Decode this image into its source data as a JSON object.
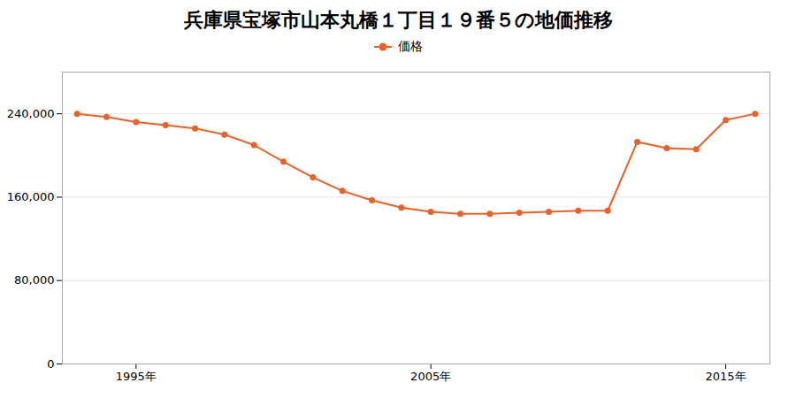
{
  "chart_data": {
    "type": "line",
    "title": "兵庫県宝塚市山本丸橋１丁目１９番５の地価推移",
    "x": [
      1993,
      1994,
      1995,
      1996,
      1997,
      1998,
      1999,
      2000,
      2001,
      2002,
      2003,
      2004,
      2005,
      2006,
      2007,
      2008,
      2009,
      2010,
      2011,
      2012,
      2013,
      2014,
      2015,
      2016
    ],
    "series": [
      {
        "name": "価格",
        "color": "#e8622a",
        "marker": "circle",
        "line_style": "solid",
        "values": [
          240000,
          237000,
          232000,
          229000,
          226000,
          220000,
          210000,
          194000,
          179000,
          166000,
          157000,
          150000,
          146000,
          144000,
          144000,
          145000,
          146000,
          147000,
          147000,
          213000,
          207000,
          206000,
          234000,
          240000
        ]
      }
    ],
    "xlim": [
      1992.5,
      2016.5
    ],
    "xticks": [
      {
        "value": 1995,
        "label": "1995年"
      },
      {
        "value": 2005,
        "label": "2005年"
      },
      {
        "value": 2015,
        "label": "2015年"
      }
    ],
    "ylim": [
      0,
      280000
    ],
    "yticks": [
      0,
      {
        "value": 80000,
        "label": "80,000"
      },
      {
        "value": 160000,
        "label": "160,000"
      },
      {
        "value": 240000,
        "label": "240,000"
      }
    ],
    "grid": "y",
    "legend": "top"
  }
}
